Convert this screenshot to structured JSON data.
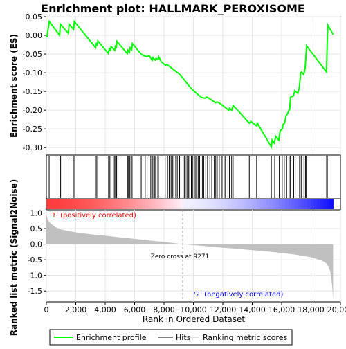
{
  "chart_data": {
    "type": "line",
    "title": "Enrichment plot: HALLMARK_PEROXISOME",
    "xlabel": "Rank in Ordered Dataset",
    "ylabel_top": "Enrichment score (ES)",
    "ylabel_bottom": "Ranked list metric (Signal2Noise)",
    "x_ticks": [
      "0",
      "2,000",
      "4,000",
      "6,000",
      "8,000",
      "10,000",
      "12,000",
      "14,000",
      "16,000",
      "18,000",
      "20,000"
    ],
    "es_y_ticks": [
      "0.05",
      "0.00",
      "-0.05",
      "-0.10",
      "-0.15",
      "-0.20",
      "-0.25",
      "-0.30"
    ],
    "metric_y_ticks": [
      "1.0",
      "0.5",
      "0.0",
      "-0.5",
      "-1.0",
      "-1.5"
    ],
    "xlim": [
      0,
      20000
    ],
    "es_ylim": [
      -0.32,
      0.05
    ],
    "metric_ylim": [
      -1.85,
      1.1
    ],
    "total_genes": 19500,
    "zero_cross": 9271,
    "zero_cross_label": "Zero cross at 9271",
    "positive_label": "'1' (positively correlated)",
    "negative_label": "'2' (negatively correlated)",
    "legend": {
      "enrichment_profile": "Enrichment profile",
      "hits": "Hits",
      "ranking_metric_scores": "Ranking metric scores"
    },
    "colors": {
      "es_line": "#00ff00",
      "hits": "#000000",
      "metric_fill": "#c0c0c0",
      "zero_line": "#a0a0a0",
      "positive_label": "#ff0000",
      "negative_label": "#0000ff"
    },
    "enrichment_profile": [
      [
        0,
        0.0
      ],
      [
        40,
        -0.005
      ],
      [
        200,
        0.037
      ],
      [
        900,
        0.0
      ],
      [
        950,
        0.03
      ],
      [
        1500,
        0.005
      ],
      [
        1550,
        0.03
      ],
      [
        1850,
        0.016
      ],
      [
        1900,
        0.037
      ],
      [
        3350,
        -0.033
      ],
      [
        3400,
        -0.02
      ],
      [
        3450,
        -0.028
      ],
      [
        3500,
        -0.015
      ],
      [
        4200,
        -0.048
      ],
      [
        4300,
        -0.034
      ],
      [
        4350,
        -0.042
      ],
      [
        4400,
        -0.03
      ],
      [
        4650,
        -0.04
      ],
      [
        4700,
        -0.026
      ],
      [
        4750,
        -0.035
      ],
      [
        4800,
        -0.016
      ],
      [
        5500,
        -0.049
      ],
      [
        5550,
        -0.04
      ],
      [
        5650,
        -0.045
      ],
      [
        5700,
        -0.033
      ],
      [
        5800,
        -0.038
      ],
      [
        5850,
        -0.022
      ],
      [
        6400,
        -0.048
      ],
      [
        6500,
        -0.052
      ],
      [
        6800,
        -0.057
      ],
      [
        7000,
        -0.055
      ],
      [
        7200,
        -0.067
      ],
      [
        7250,
        -0.06
      ],
      [
        7400,
        -0.066
      ],
      [
        7450,
        -0.062
      ],
      [
        7600,
        -0.064
      ],
      [
        7650,
        -0.058
      ],
      [
        7800,
        -0.07
      ],
      [
        8100,
        -0.08
      ],
      [
        8200,
        -0.078
      ],
      [
        8500,
        -0.087
      ],
      [
        9000,
        -0.102
      ],
      [
        9300,
        -0.115
      ],
      [
        9700,
        -0.135
      ],
      [
        10000,
        -0.148
      ],
      [
        10300,
        -0.158
      ],
      [
        10550,
        -0.166
      ],
      [
        10800,
        -0.168
      ],
      [
        10900,
        -0.165
      ],
      [
        11050,
        -0.168
      ],
      [
        11500,
        -0.18
      ],
      [
        11600,
        -0.178
      ],
      [
        11800,
        -0.182
      ],
      [
        12000,
        -0.188
      ],
      [
        12400,
        -0.2
      ],
      [
        12450,
        -0.195
      ],
      [
        12600,
        -0.2
      ],
      [
        12700,
        -0.188
      ],
      [
        13000,
        -0.2
      ],
      [
        13800,
        -0.235
      ],
      [
        13900,
        -0.23
      ],
      [
        14300,
        -0.242
      ],
      [
        14350,
        -0.235
      ],
      [
        15100,
        -0.285
      ],
      [
        15300,
        -0.298
      ],
      [
        15350,
        -0.28
      ],
      [
        15500,
        -0.288
      ],
      [
        15600,
        -0.27
      ],
      [
        15800,
        -0.28
      ],
      [
        15900,
        -0.255
      ],
      [
        16050,
        -0.25
      ],
      [
        16100,
        -0.238
      ],
      [
        16200,
        -0.235
      ],
      [
        16300,
        -0.215
      ],
      [
        16400,
        -0.21
      ],
      [
        16500,
        -0.2
      ],
      [
        16550,
        -0.198
      ],
      [
        16600,
        -0.165
      ],
      [
        16800,
        -0.162
      ],
      [
        16900,
        -0.148
      ],
      [
        17100,
        -0.155
      ],
      [
        17200,
        -0.14
      ],
      [
        17300,
        -0.1
      ],
      [
        17350,
        -0.098
      ],
      [
        17500,
        -0.105
      ],
      [
        17600,
        -0.088
      ],
      [
        17700,
        -0.028
      ],
      [
        19050,
        -0.098
      ],
      [
        19100,
        -0.02
      ],
      [
        19150,
        0.027
      ],
      [
        19500,
        0.002
      ]
    ],
    "hit_ranks": [
      190,
      970,
      1530,
      1880,
      3340,
      3430,
      4230,
      4320,
      4620,
      4700,
      4780,
      5540,
      5600,
      5680,
      5760,
      5830,
      6450,
      6720,
      6850,
      7100,
      7240,
      7330,
      7390,
      7460,
      7580,
      7620,
      8080,
      8240,
      8350,
      8480,
      8600,
      8800,
      8900,
      9060,
      9380,
      9450,
      9560,
      9660,
      9750,
      9860,
      9940,
      10040,
      10120,
      10210,
      10320,
      10420,
      10520,
      10620,
      10700,
      10840,
      10960,
      11120,
      11250,
      11420,
      11520,
      11620,
      11760,
      11950,
      12150,
      12350,
      12450,
      12600,
      12700,
      13800,
      14300,
      15300,
      15530,
      15840,
      16040,
      16180,
      16340,
      16500,
      16580,
      16820,
      16920,
      17220,
      17330,
      17520,
      17620,
      17680,
      19060,
      19110
    ],
    "ranking_metric": [
      [
        0,
        1.05
      ],
      [
        30,
        0.9
      ],
      [
        100,
        0.78
      ],
      [
        300,
        0.66
      ],
      [
        600,
        0.55
      ],
      [
        1000,
        0.47
      ],
      [
        2000,
        0.38
      ],
      [
        3000,
        0.32
      ],
      [
        4000,
        0.27
      ],
      [
        5000,
        0.22
      ],
      [
        6000,
        0.17
      ],
      [
        7000,
        0.12
      ],
      [
        8000,
        0.07
      ],
      [
        9271,
        0.0
      ],
      [
        10000,
        -0.03
      ],
      [
        11000,
        -0.07
      ],
      [
        12000,
        -0.11
      ],
      [
        13000,
        -0.15
      ],
      [
        14000,
        -0.19
      ],
      [
        15000,
        -0.23
      ],
      [
        16000,
        -0.28
      ],
      [
        17000,
        -0.34
      ],
      [
        18000,
        -0.42
      ],
      [
        18700,
        -0.52
      ],
      [
        19000,
        -0.6
      ],
      [
        19200,
        -0.72
      ],
      [
        19350,
        -0.95
      ],
      [
        19430,
        -1.3
      ],
      [
        19480,
        -1.6
      ],
      [
        19500,
        -1.78
      ]
    ]
  }
}
